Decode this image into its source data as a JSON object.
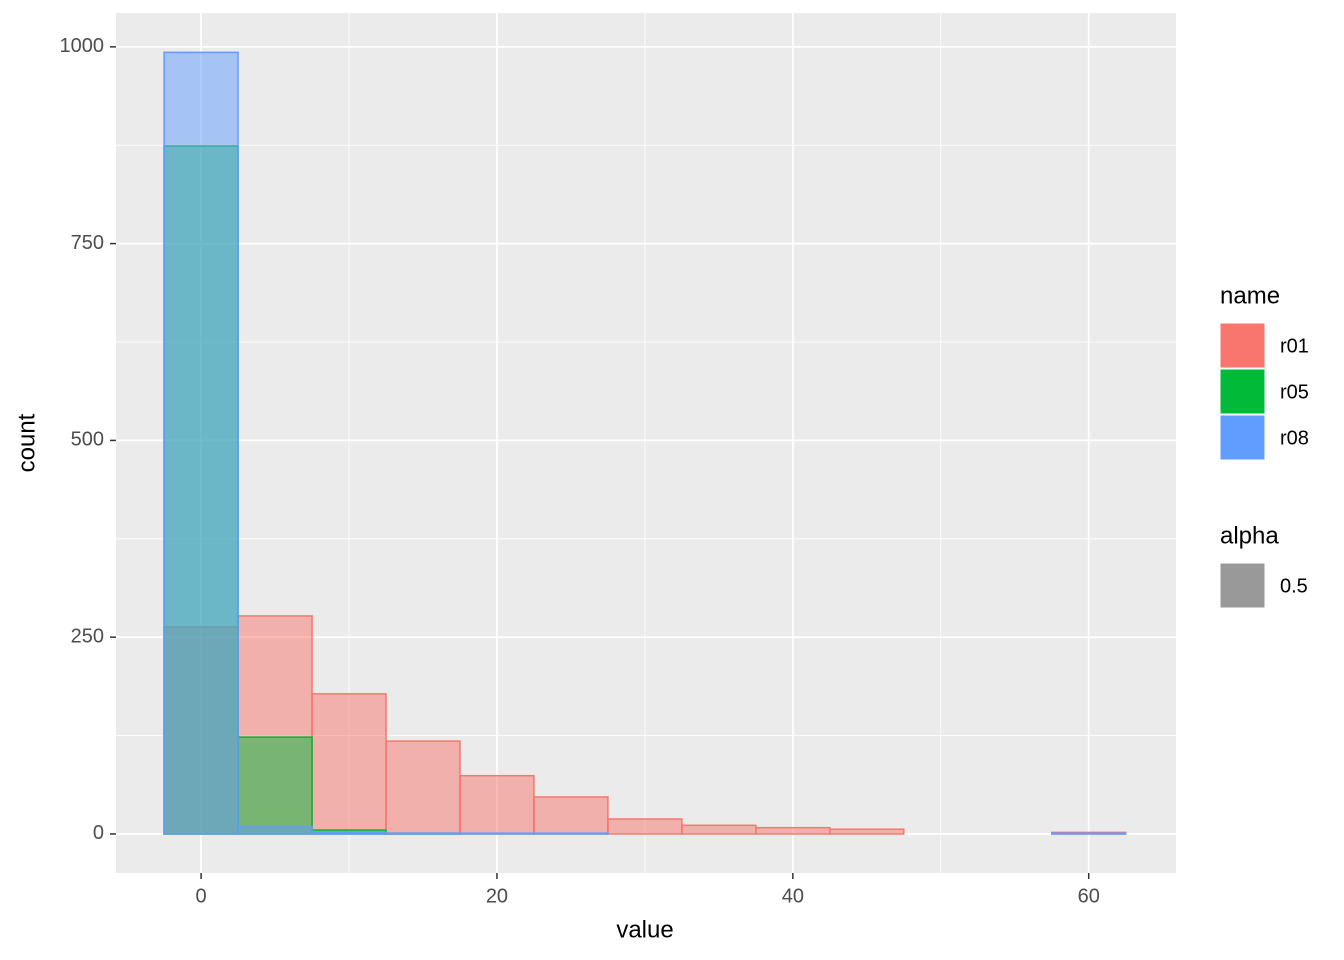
{
  "chart_data": {
    "type": "histogram",
    "x_label": "value",
    "y_label": "count",
    "bins": [
      -2.5,
      2.5,
      7.5,
      12.5,
      17.5,
      22.5,
      27.5,
      32.5,
      37.5,
      42.5,
      47.5,
      52.5,
      57.5,
      62.5
    ],
    "series": [
      {
        "name": "r01",
        "color": "#f8766d",
        "values": [
          263,
          277,
          178,
          118,
          74,
          47,
          19,
          11,
          8,
          6,
          0,
          0,
          2
        ]
      },
      {
        "name": "r05",
        "color": "#00ba38",
        "values": [
          874,
          123,
          5,
          1,
          0,
          0,
          0,
          0,
          0,
          0,
          0,
          0,
          0
        ]
      },
      {
        "name": "r08",
        "color": "#619cff",
        "values": [
          993,
          9,
          2,
          1,
          1,
          1,
          0,
          0,
          0,
          0,
          0,
          0,
          1
        ]
      }
    ],
    "legend_title": "name",
    "alpha_legend": {
      "title": "alpha",
      "value": 0.5
    },
    "xlim": [
      -5.75,
      65.9
    ],
    "ylim": [
      -49.6,
      1043
    ],
    "xticks": [
      0,
      20,
      40,
      60
    ],
    "yticks": [
      0,
      250,
      500,
      750,
      1000
    ],
    "minor_xticks": [
      10,
      30,
      50
    ],
    "minor_yticks": [
      125,
      375,
      625,
      875
    ],
    "grid": true
  }
}
